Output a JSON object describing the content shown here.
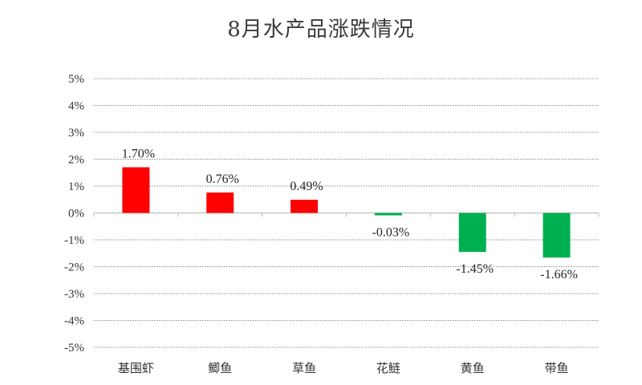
{
  "chart_data": {
    "type": "bar",
    "title": "8月水产品涨跌情况",
    "categories": [
      "基围虾",
      "鲫鱼",
      "草鱼",
      "花鲢",
      "黄鱼",
      "带鱼"
    ],
    "values": [
      1.7,
      0.76,
      0.49,
      -0.03,
      -1.45,
      -1.66
    ],
    "data_labels": [
      "1.70%",
      "0.76%",
      "0.49%",
      "-0.03%",
      "-1.45%",
      "-1.66%"
    ],
    "ylim": [
      -5,
      5
    ],
    "yticks": [
      5,
      4,
      3,
      2,
      1,
      0,
      -1,
      -2,
      -3,
      -4,
      -5
    ],
    "ytick_labels": [
      "5%",
      "4%",
      "3%",
      "2%",
      "1%",
      "0%",
      "-1%",
      "-2%",
      "-3%",
      "-4%",
      "-5%"
    ],
    "xlabel": "",
    "ylabel": "",
    "grid": true,
    "legend": false,
    "colors": {
      "positive": "#ff0000",
      "negative": "#00b050",
      "grid": "#8c8c8c",
      "axis": "#bfbfbf"
    }
  }
}
